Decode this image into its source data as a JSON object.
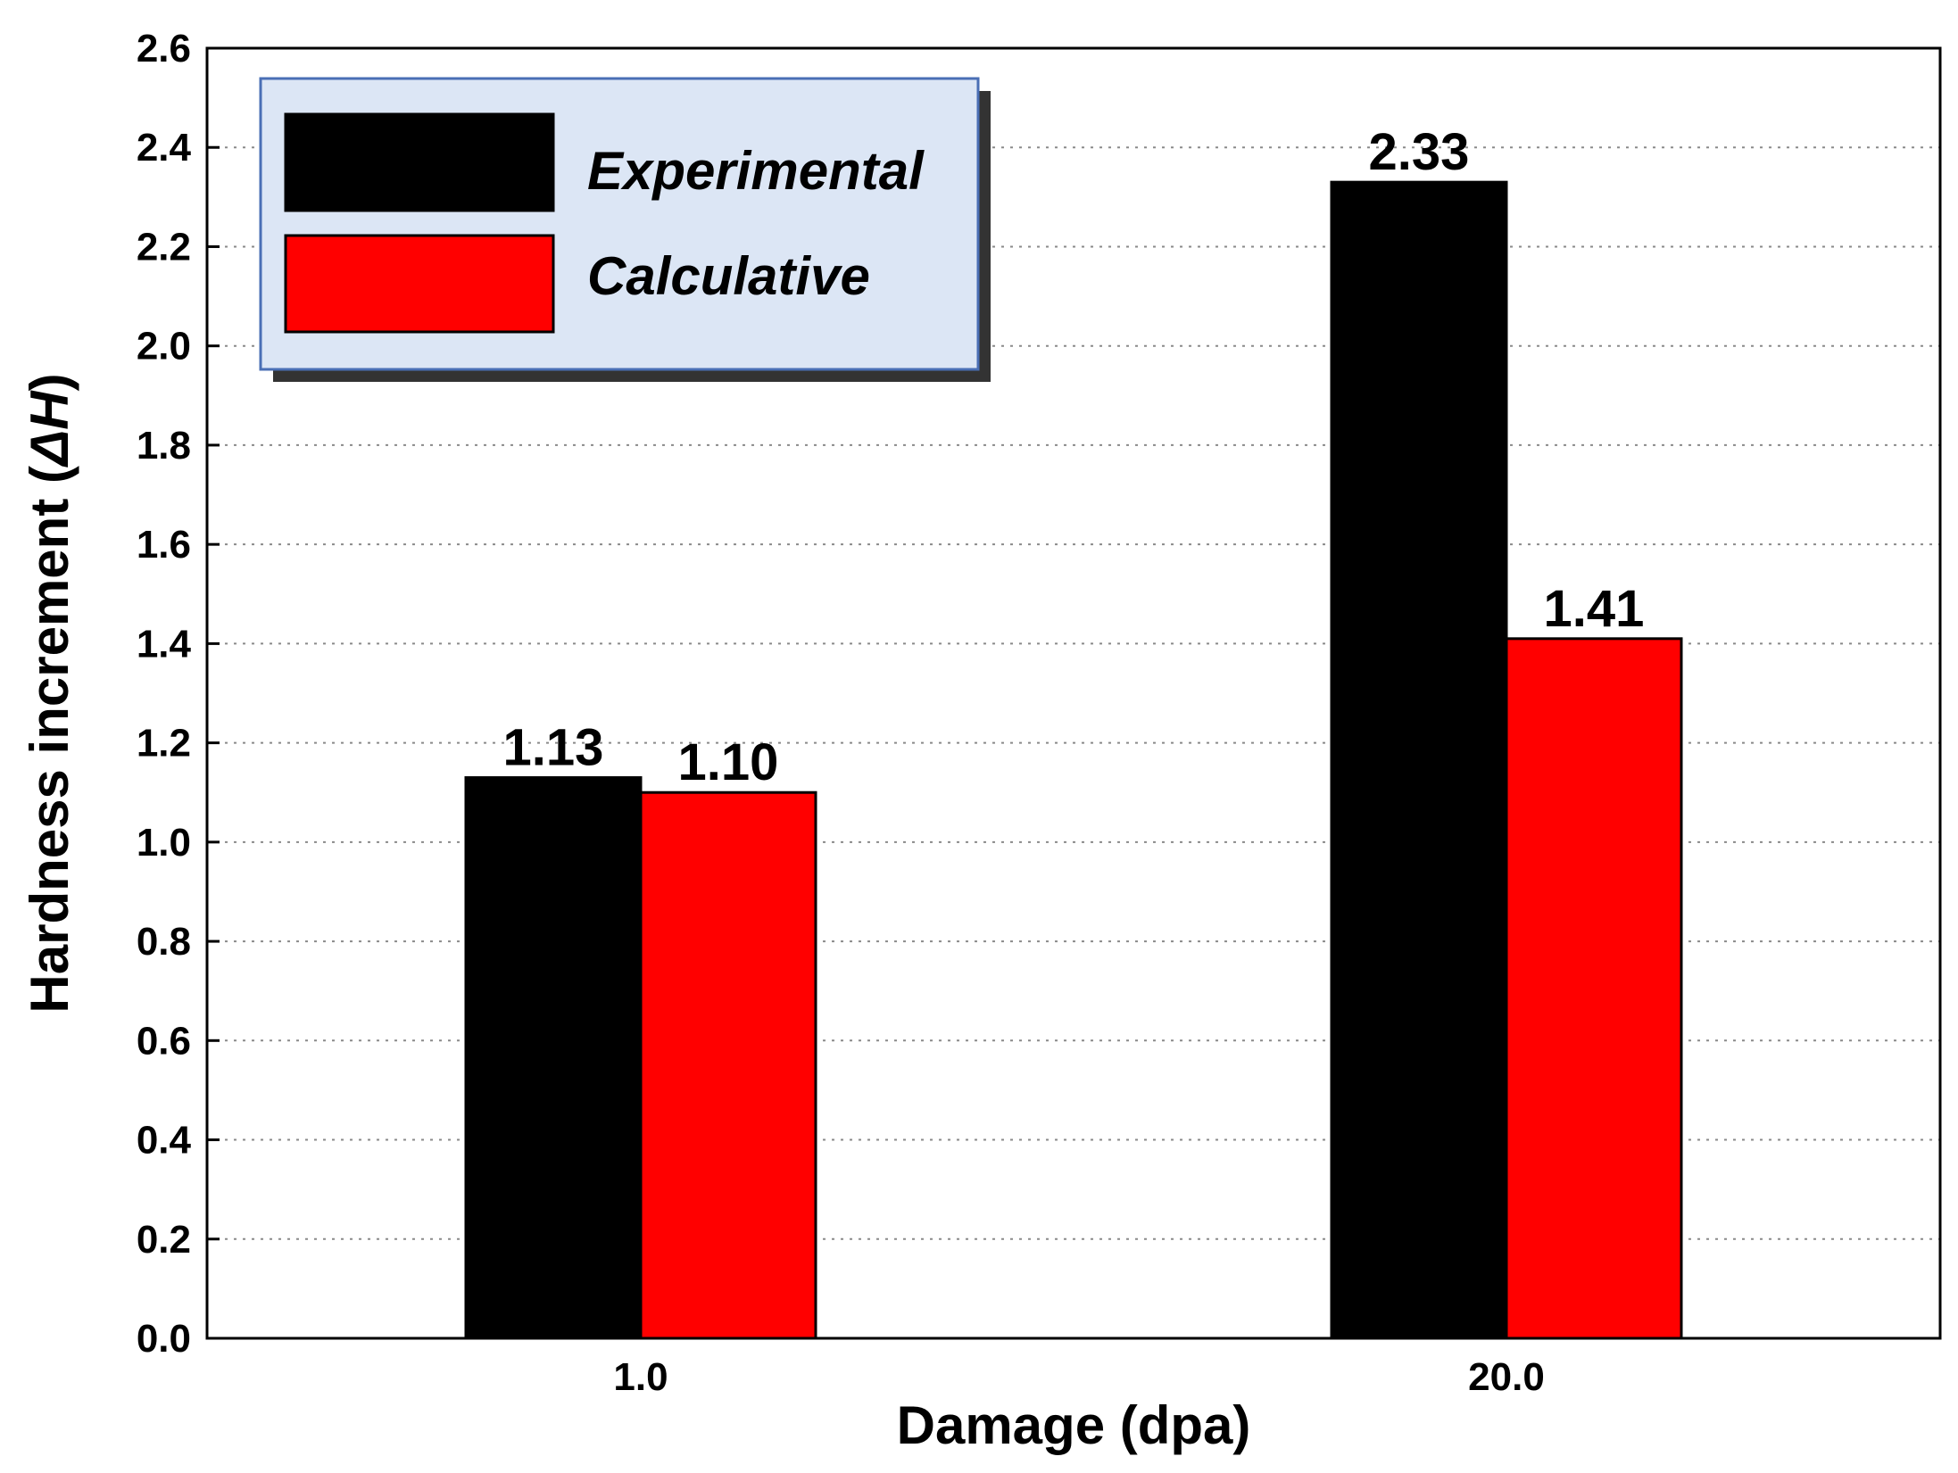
{
  "chart_data": {
    "type": "bar",
    "categories": [
      "1.0",
      "20.0"
    ],
    "series": [
      {
        "name": "Experimental",
        "values": [
          1.13,
          2.33
        ],
        "labels": [
          "1.13",
          "2.33"
        ],
        "color": "#000000"
      },
      {
        "name": "Calculative",
        "values": [
          1.1,
          1.41
        ],
        "labels": [
          "1.10",
          "1.41"
        ],
        "color": "#ff0000"
      }
    ],
    "xlabel": "Damage (dpa)",
    "ylabel_main": "Hardness increment (",
    "ylabel_symbol": "ΔH",
    "ylabel_close": ")",
    "ylim": [
      0,
      2.6
    ],
    "yticks": [
      "0.0",
      "0.2",
      "0.4",
      "0.6",
      "0.8",
      "1.0",
      "1.2",
      "1.4",
      "1.6",
      "1.8",
      "2.0",
      "2.2",
      "2.4",
      "2.6"
    ],
    "grid": true,
    "legend_position": "top-left",
    "legend_background": "#dce6f5",
    "legend_border": "#4a6fb5"
  }
}
